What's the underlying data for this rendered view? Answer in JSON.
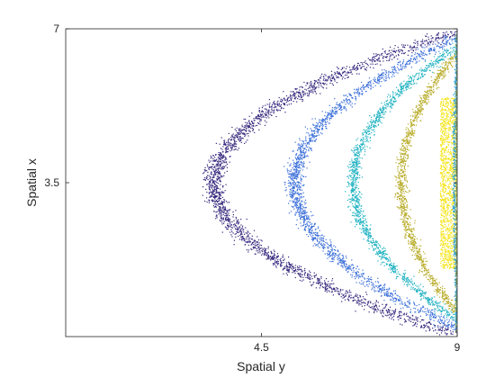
{
  "chart_data": {
    "type": "scatter",
    "title": "",
    "xlabel": "Spatial y",
    "ylabel": "Spatial x",
    "xlim": [
      0,
      9
    ],
    "ylim": [
      0,
      7
    ],
    "xticks": [
      4.5,
      9
    ],
    "xtick_labels": [
      "4.5",
      "9"
    ],
    "yticks": [
      3.5,
      7
    ],
    "ytick_labels": [
      "3.5",
      "7"
    ],
    "grid": false,
    "legend": "none",
    "description_series": "Seven concentric parabolic bands of scattered points opening to the right; each band approximately satisfies x = 3.5 + sqrt((9 - y)/(9 - vertex_y)) * halfwidth above and below the center x = 3.5.",
    "series": [
      {
        "vertex_y": 3.4,
        "halfwidth": 3.45,
        "spread": 0.11,
        "n": 2300,
        "color": "#35277d"
      },
      {
        "vertex_y": 5.25,
        "halfwidth": 3.3,
        "spread": 0.09,
        "n": 1800,
        "color": "#3b6fd9"
      },
      {
        "vertex_y": 6.6,
        "halfwidth": 3.1,
        "spread": 0.07,
        "n": 1400,
        "color": "#22b3c2"
      },
      {
        "vertex_y": 7.7,
        "halfwidth": 2.95,
        "spread": 0.06,
        "n": 1200,
        "color": "#b8ac2a"
      },
      {
        "vertex_y": 8.6,
        "halfwidth": 2.6,
        "spread": 0.18,
        "n": 1400,
        "color": "#f5e51c"
      },
      {
        "vertex_y": 8.92,
        "halfwidth": 3.3,
        "spread": 0.02,
        "n": 500,
        "color": "#2b9ed9"
      },
      {
        "vertex_y": 8.97,
        "halfwidth": 3.4,
        "spread": 0.01,
        "n": 300,
        "color": "#7ea55c"
      }
    ]
  }
}
